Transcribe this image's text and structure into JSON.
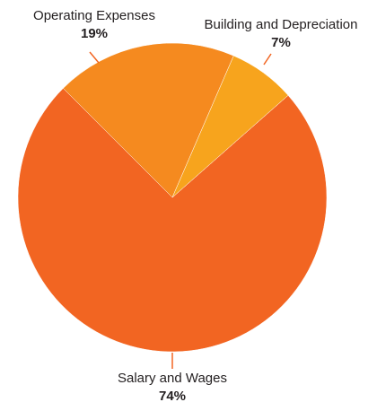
{
  "chart_data": {
    "type": "pie",
    "categories": [
      "Salary and Wages",
      "Operating Expenses",
      "Building and Depreciation"
    ],
    "values": [
      74,
      19,
      7
    ],
    "value_labels": [
      "74%",
      "19%",
      "7%"
    ],
    "colors": [
      "#f26522",
      "#f58a1f",
      "#f7a41d"
    ]
  }
}
